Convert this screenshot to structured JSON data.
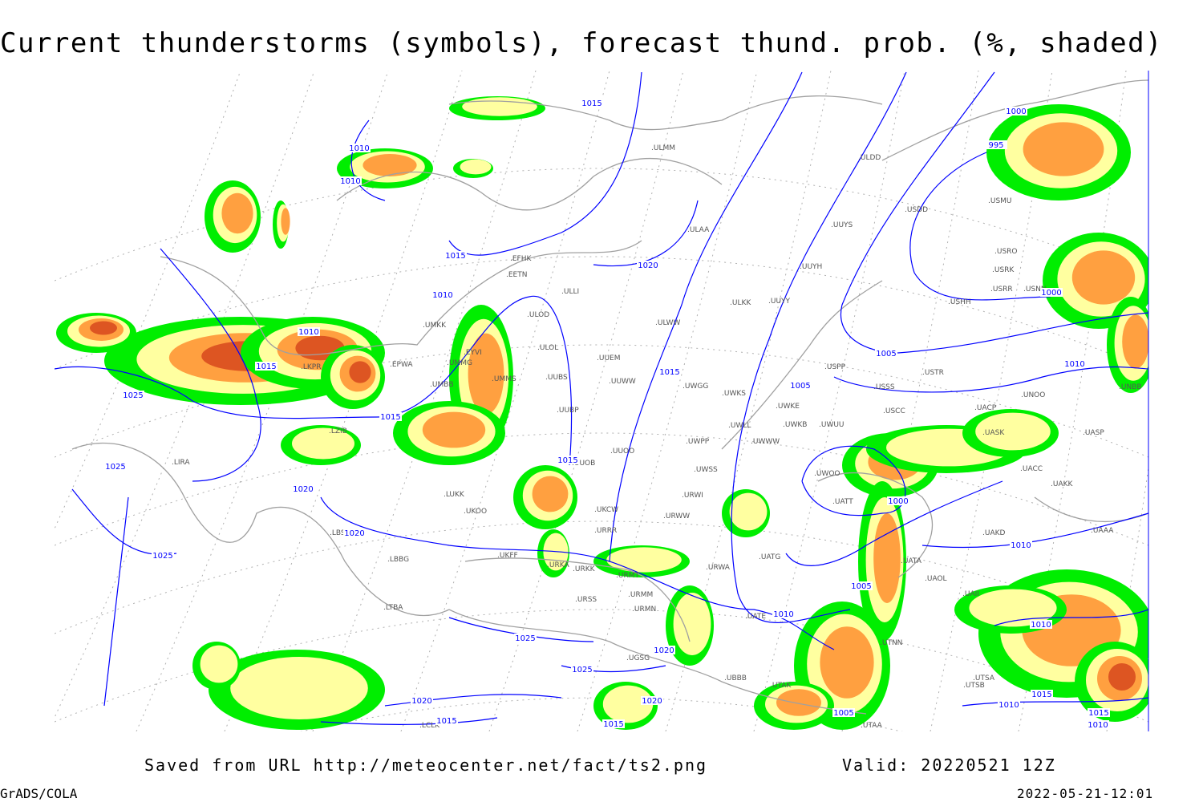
{
  "title": "Current thunderstorms (symbols), forecast thund. prob. (%, shaded)",
  "footer": {
    "saved": "Saved from URL http://meteocenter.net/fact/ts2.png",
    "valid": "Valid: 20220521 12Z",
    "software": "GrADS/COLA",
    "timestamp": "2022-05-21-12:01"
  },
  "colors": {
    "prob_low": "#00ee00",
    "prob_mid": "#ffffa0",
    "prob_high": "#ffa040",
    "prob_max": "#dd5522",
    "isobar": "#0000ff",
    "coastline": "#a0a0a0",
    "grid": "#b0b0b0"
  },
  "isobar_labels": [
    "1015",
    "1010",
    "1010",
    "1015",
    "1020",
    "1010",
    "1010",
    "1015",
    "1025",
    "1015",
    "1025",
    "1020",
    "1020",
    "1025",
    "1015",
    "1005",
    "1005",
    "1010",
    "1000",
    "1000",
    "995",
    "1000",
    "1010",
    "1010",
    "1005",
    "1010",
    "1025",
    "1025",
    "1020",
    "1020",
    "1015",
    "1015",
    "1005",
    "1010",
    "1015",
    "1010",
    "1015",
    "1015",
    "1020"
  ],
  "stations": [
    "ULMM",
    "ULDD",
    "UUYS",
    "USDD",
    "USMU",
    "ULAA",
    "EFHK",
    "EETN",
    "ULLI",
    "UUYH",
    "USRO",
    "USRK",
    "USRR",
    "USNN",
    "USHH",
    "ULKK",
    "UUYY",
    "ULWW",
    "UMKK",
    "ULOD",
    "ULOL",
    "EYVI",
    "UUEM",
    "EPWA",
    "UMMG",
    "UMMS",
    "UUBS",
    "UUWW",
    "UWGG",
    "UWKS",
    "USPP",
    "USTR",
    "USSS",
    "UNOO",
    "UNBB",
    "UMBB",
    "UUBP",
    "UWKE",
    "UWKB",
    "UWUU",
    "USCC",
    "UACP",
    "UASK",
    "UASP",
    "UWLL",
    "UWWW",
    "UWPP",
    "UUOO",
    "UUOB",
    "UWOO",
    "UATT",
    "UACC",
    "UAKK",
    "UWSS",
    "URWI",
    "LUKK",
    "UKOO",
    "UKCW",
    "URRR",
    "URWW",
    "UAKD",
    "UAAA",
    "LIRA",
    "LBSF",
    "LBBG",
    "UKFF",
    "URKA",
    "URKK",
    "URMT",
    "URWA",
    "UATG",
    "UATA",
    "UAOL",
    "UAII",
    "URSS",
    "URMM",
    "URMN",
    "UATE",
    "LTBA",
    "UTNN",
    "UBBB",
    "UGSG",
    "UTAK",
    "UTSA",
    "UTSB",
    "UTAA",
    "LCLK",
    "LKPR",
    "LZIB"
  ]
}
